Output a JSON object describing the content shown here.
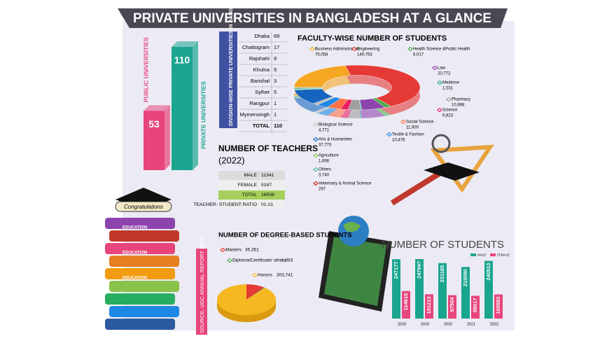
{
  "title": "PRIVATE UNIVERSITIES IN BANGLADESH AT A GLANCE",
  "source": "SOURCE: UGC ANNUAL REPORT 2022",
  "illustration": {
    "scroll_text": "Congratulations",
    "book_labels": [
      "EDUCATION",
      "EDUCATION",
      "EDUCATION"
    ]
  },
  "division_table": {
    "title": "DIVISION-WISE PRIVATE UNIVERSITIES IN BANGLADESH",
    "rows": [
      [
        "Dhaka",
        69
      ],
      [
        "Chattogram",
        17
      ],
      [
        "Rajshahi",
        9
      ],
      [
        "Khulna",
        5
      ],
      [
        "Barishal",
        3
      ],
      [
        "Sylhet",
        5
      ],
      [
        "Rangpur",
        1
      ],
      [
        "Mymensingh",
        1
      ],
      [
        "TOTAL",
        110
      ]
    ]
  },
  "teachers": {
    "title": "NUMBER OF TEACHERS",
    "subtitle": "(2022)",
    "rows": [
      [
        "MALE",
        11341
      ],
      [
        "FEMALE",
        5167
      ],
      [
        "TOTAL",
        16508
      ],
      [
        "TEACHER- STUDENT RATIO",
        "01:21"
      ]
    ]
  },
  "chart_data": [
    {
      "type": "bar",
      "categories": [
        "PUBLIC UNIVERSITIES",
        "PRIVATE UNIVERSITIES"
      ],
      "values": [
        53,
        110
      ],
      "colors": [
        "#e8457c",
        "#1aa58f"
      ]
    },
    {
      "type": "donut",
      "title": "FACULTY-WISE NUMBER OF STUDENTS",
      "categories": [
        "Business Administration",
        "Engineering",
        "Health Science &Public Health",
        "Law",
        "Medicine",
        "Pharmacy",
        "Science",
        "Social Science",
        "Textile & Fashion",
        "Biological Science",
        "Arts & Humanities",
        "Agriculture",
        "Others",
        "Veterinary & Animal Science"
      ],
      "values": [
        75058,
        149753,
        6017,
        20772,
        1031,
        10998,
        6823,
        11900,
        10476,
        4771,
        37773,
        1698,
        3740,
        297
      ],
      "value_labels": [
        "75,058",
        "149,753",
        "6,017",
        "20,772",
        "1,031",
        "10,998",
        "6,823",
        "11,900",
        "10,476",
        "4,771",
        "37,773",
        "1,698",
        "3,740",
        "297"
      ],
      "colors": [
        "#f5a623",
        "#e53935",
        "#4caf50",
        "#8e44ad",
        "#26a69a",
        "#9e9e9e",
        "#e91e63",
        "#ff7043",
        "#1e88e5",
        "#bdbdbd",
        "#1565c0",
        "#8bc34a",
        "#4db6ac",
        "#c62828"
      ]
    },
    {
      "type": "pie",
      "title": "NUMBER OF DEGREE-BASED STUDENTS",
      "categories": [
        "Masters",
        "Diploma/Certificate/ others",
        "Honors"
      ],
      "values": [
        35351,
        1693,
        303741
      ],
      "value_labels": [
        "35,351",
        "1,693",
        "303,741"
      ],
      "colors": [
        "#e53935",
        "#4caf50",
        "#f5b820"
      ]
    },
    {
      "type": "grouped_bar",
      "title": "NUMBER OF STUDENTS",
      "categories": [
        "2018",
        "2019",
        "2020",
        "2021",
        "2022"
      ],
      "series": [
        {
          "name": "MALE",
          "color": "#1aa58f",
          "values": [
            247177,
            247947,
            231185,
            215090,
            240513
          ]
        },
        {
          "name": "FEMALE",
          "color": "#e8457c",
          "values": [
            114615,
            101213,
            97504,
            95017,
            100583
          ]
        }
      ]
    }
  ]
}
